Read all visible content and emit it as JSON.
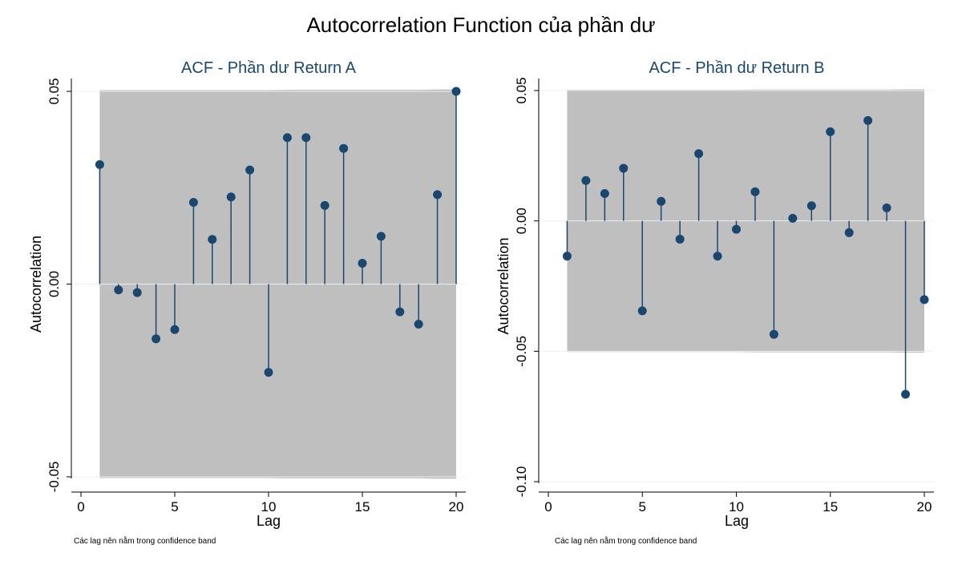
{
  "figure_title": "Autocorrelation Function của phần dư",
  "colors": {
    "band": "#bfbfbf",
    "marker": "#1a476f",
    "subtitle": "#1a476f",
    "axis": "#000000",
    "gridline": "#eaf2f3"
  },
  "chart_data": [
    {
      "type": "scatter",
      "title": "ACF - Phần dư Return A",
      "xlabel": "Lag",
      "ylabel": "Autocorrelation",
      "note": "Các lag nên nằm trong confidence band",
      "xlim": [
        0,
        20
      ],
      "ylim": [
        -0.05,
        0.05
      ],
      "xticks": [
        "0",
        "5",
        "10",
        "15",
        "20"
      ],
      "yticks": [
        "-0.05",
        "0.00",
        "0.05"
      ],
      "lags": [
        1,
        2,
        3,
        4,
        5,
        6,
        7,
        8,
        9,
        10,
        11,
        12,
        13,
        14,
        15,
        16,
        17,
        18,
        19,
        20
      ],
      "acf": [
        0.031,
        -0.0015,
        -0.0022,
        -0.0142,
        -0.0118,
        0.0212,
        0.0116,
        0.0226,
        0.0296,
        -0.0229,
        0.038,
        0.038,
        0.0204,
        0.0352,
        0.0054,
        0.0124,
        -0.0072,
        -0.0104,
        0.0232,
        0.05
      ],
      "band_upper": [
        0.0503,
        0.0503,
        0.0503,
        0.0503,
        0.0503,
        0.0503,
        0.0503,
        0.0503,
        0.0503,
        0.0503,
        0.0504,
        0.0504,
        0.0504,
        0.0504,
        0.0504,
        0.0504,
        0.0504,
        0.0504,
        0.0505,
        0.0505
      ],
      "band_lower": [
        -0.0503,
        -0.0503,
        -0.0503,
        -0.0503,
        -0.0503,
        -0.0503,
        -0.0503,
        -0.0503,
        -0.0503,
        -0.0503,
        -0.0504,
        -0.0504,
        -0.0504,
        -0.0504,
        -0.0504,
        -0.0504,
        -0.0504,
        -0.0504,
        -0.0505,
        -0.0505
      ]
    },
    {
      "type": "scatter",
      "title": "ACF - Phần dư Return B",
      "xlabel": "Lag",
      "ylabel": "Autocorrelation",
      "note": "Các lag nên nằm trong confidence band",
      "xlim": [
        0,
        20
      ],
      "ylim": [
        -0.1,
        0.05
      ],
      "xticks": [
        "0",
        "5",
        "10",
        "15",
        "20"
      ],
      "yticks": [
        "-0.10",
        "-0.05",
        "0.00",
        "0.05"
      ],
      "lags": [
        1,
        2,
        3,
        4,
        5,
        6,
        7,
        8,
        9,
        10,
        11,
        12,
        13,
        14,
        15,
        16,
        17,
        18,
        19,
        20
      ],
      "acf": [
        -0.0135,
        0.0155,
        0.0105,
        0.0202,
        -0.0345,
        0.0075,
        -0.007,
        0.0258,
        -0.0135,
        -0.0032,
        0.0112,
        -0.0435,
        0.001,
        0.0058,
        0.0342,
        -0.0045,
        0.0385,
        0.005,
        -0.0665,
        -0.0302
      ],
      "band_upper": [
        0.0503,
        0.0503,
        0.0503,
        0.0503,
        0.0503,
        0.0503,
        0.0503,
        0.0503,
        0.0503,
        0.0503,
        0.0504,
        0.0504,
        0.0504,
        0.0504,
        0.0504,
        0.0504,
        0.0504,
        0.0504,
        0.0505,
        0.0505
      ],
      "band_lower": [
        -0.0503,
        -0.0503,
        -0.0503,
        -0.0503,
        -0.0503,
        -0.0503,
        -0.0503,
        -0.0503,
        -0.0503,
        -0.0503,
        -0.0504,
        -0.0504,
        -0.0504,
        -0.0504,
        -0.0504,
        -0.0504,
        -0.0504,
        -0.0504,
        -0.0505,
        -0.0505
      ]
    }
  ]
}
